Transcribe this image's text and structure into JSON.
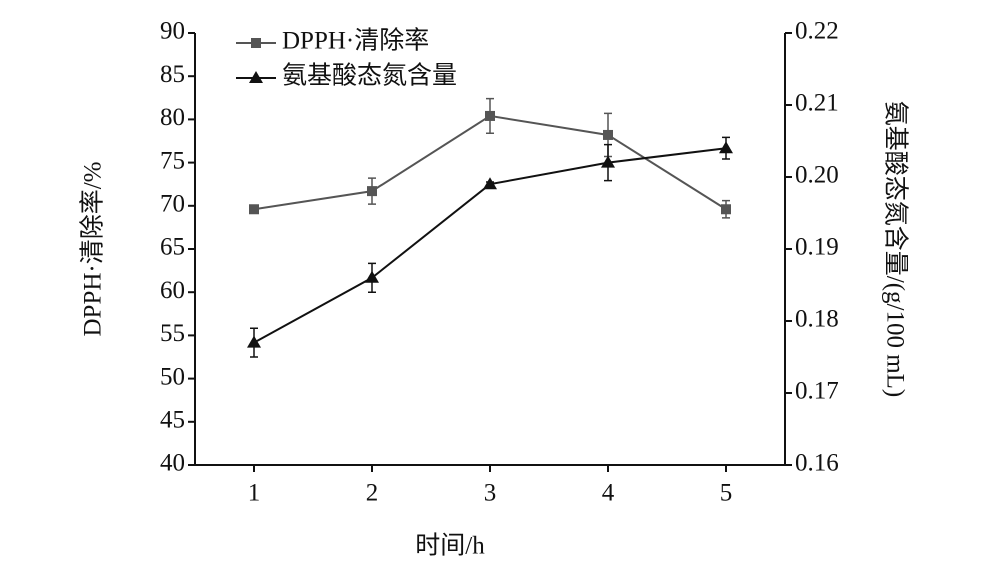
{
  "chart_data": {
    "type": "line",
    "x_label": "时间/h",
    "y_label": "DPPH·清除率/%",
    "y2_label": "氨基酸态氮含量/(g/100 mL)",
    "x": [
      1,
      2,
      3,
      4,
      5
    ],
    "xlim": [
      0.5,
      5.5
    ],
    "xticks": [
      1,
      2,
      3,
      4,
      5
    ],
    "ylim": [
      40,
      90
    ],
    "yticks": [
      40,
      45,
      50,
      55,
      60,
      65,
      70,
      75,
      80,
      85,
      90
    ],
    "y2lim": [
      0.16,
      0.22
    ],
    "y2ticks": [
      0.16,
      0.17,
      0.18,
      0.19,
      {
        "value": 0.2,
        "label": "0.20"
      },
      0.21,
      0.22
    ],
    "legend": "upper left",
    "series": [
      {
        "name": "DPPH·清除率",
        "color": "#555555",
        "marker": "square",
        "values": [
          69.6,
          71.7,
          80.4,
          78.2,
          69.6
        ],
        "errors": [
          0.3,
          1.5,
          2,
          2.5,
          1
        ]
      },
      {
        "name": "氨基酸态氮含量",
        "color": "#111111",
        "marker": "triangle",
        "axis": "y2",
        "values": [
          0.177,
          0.186,
          0.199,
          0.202,
          0.204
        ],
        "errors": [
          0.002,
          0.002,
          0.0003,
          0.0025,
          0.0015
        ]
      }
    ]
  }
}
